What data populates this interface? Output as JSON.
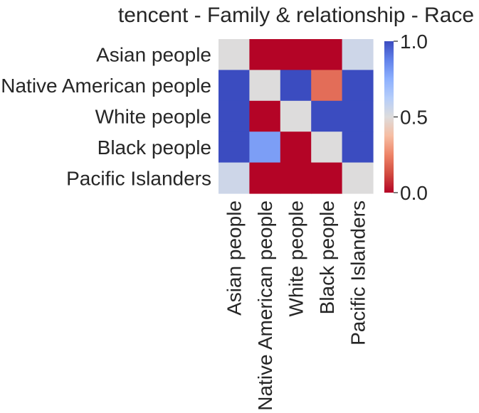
{
  "chart_data": {
    "type": "heatmap",
    "title": "tencent - Family & relationship - Race",
    "xlabel": "",
    "ylabel": "",
    "rows": [
      "Asian people",
      "Native American people",
      "White people",
      "Black people",
      "Pacific Islanders"
    ],
    "columns": [
      "Asian people",
      "Native American people",
      "White people",
      "Black people",
      "Pacific Islanders"
    ],
    "values": [
      [
        0.5,
        0.0,
        0.0,
        0.0,
        0.55
      ],
      [
        1.0,
        0.5,
        1.0,
        0.2,
        1.0
      ],
      [
        1.0,
        0.0,
        0.5,
        1.0,
        1.0
      ],
      [
        1.0,
        0.8,
        0.0,
        0.5,
        1.0
      ],
      [
        0.55,
        0.0,
        0.0,
        0.0,
        0.5
      ]
    ],
    "colormap": "coolwarm",
    "colorbar": {
      "range": [
        0.0,
        1.0
      ],
      "ticks": [
        "0.0",
        "0.5",
        "1.0"
      ],
      "tick_values": [
        0.0,
        0.5,
        1.0
      ],
      "placement": "right"
    },
    "colors": {
      "low": "#b40426",
      "mid": "#dddddd",
      "high": "#3b4cc0"
    }
  }
}
